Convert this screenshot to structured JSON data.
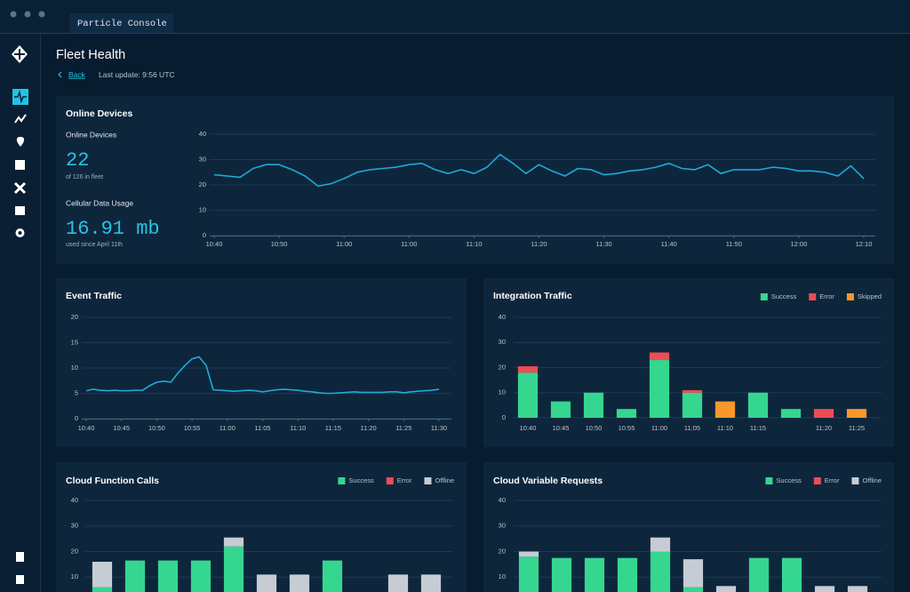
{
  "app": {
    "tab": "Particle Console"
  },
  "page": {
    "title": "Fleet Health",
    "back": "Back",
    "last_update": "Last update: 9:56 UTC"
  },
  "stats": [
    {
      "label": "Online Devices",
      "value": "22",
      "note": "of 126 in fleet"
    },
    {
      "label": "Cellular Data Usage",
      "value": "16.91 mb",
      "note": "used since April 11th"
    }
  ],
  "chart_data": [
    {
      "type": "line",
      "title": "Online Devices",
      "color": "#1fa9d8",
      "grid": true,
      "ylim": [
        0,
        40
      ],
      "yticks": [
        0,
        10,
        20,
        30,
        40
      ],
      "categories": [
        "10:40",
        null,
        null,
        null,
        null,
        "10:50",
        null,
        null,
        null,
        null,
        "11:00",
        null,
        null,
        null,
        null,
        "11:00",
        null,
        null,
        null,
        null,
        "11:10",
        null,
        null,
        null,
        null,
        "11:20",
        null,
        null,
        null,
        null,
        "11:30",
        null,
        null,
        null,
        null,
        "11:40",
        null,
        null,
        null,
        null,
        "11:50",
        null,
        null,
        null,
        null,
        "12:00",
        null,
        null,
        null,
        null,
        "12:10"
      ],
      "values": [
        24,
        23.5,
        23,
        26.5,
        28,
        28,
        26,
        23.5,
        19.5,
        20.5,
        22.5,
        25,
        26,
        26.5,
        27,
        28,
        28.5,
        26,
        24.5,
        26,
        24.5,
        27,
        32,
        28.5,
        24.5,
        28,
        25.5,
        23.5,
        26.5,
        26,
        24,
        24.5,
        25.5,
        26,
        27,
        28.5,
        26.5,
        26,
        28,
        24.5,
        26,
        26,
        26,
        27,
        26.5,
        25.5,
        25.5,
        25,
        23.5,
        27.5,
        22.5
      ]
    },
    {
      "type": "line",
      "title": "Event Traffic",
      "color": "#1fa9d8",
      "grid": true,
      "ylim": [
        0,
        20
      ],
      "yticks": [
        0,
        5,
        10,
        15,
        20
      ],
      "categories": [
        "10:40",
        null,
        null,
        null,
        null,
        "10:45",
        null,
        null,
        null,
        null,
        "10:50",
        null,
        null,
        null,
        null,
        "10:55",
        null,
        null,
        null,
        null,
        "11:00",
        null,
        null,
        null,
        null,
        "11:05",
        null,
        null,
        null,
        null,
        "11:10",
        null,
        null,
        null,
        null,
        "11:15",
        null,
        null,
        null,
        null,
        "11:20",
        null,
        null,
        null,
        null,
        "11:25",
        null,
        null,
        null,
        null,
        "11:30"
      ],
      "values": [
        5.5,
        5.8,
        5.6,
        5.5,
        5.6,
        5.5,
        5.5,
        5.6,
        5.6,
        6.5,
        7.2,
        7.4,
        7.2,
        9,
        10.5,
        11.8,
        12.2,
        10.5,
        5.7,
        5.6,
        5.5,
        5.4,
        5.5,
        5.6,
        5.5,
        5.3,
        5.5,
        5.7,
        5.8,
        5.7,
        5.6,
        5.4,
        5.3,
        5.1,
        5.0,
        5.0,
        5.1,
        5.2,
        5.3,
        5.2,
        5.2,
        5.2,
        5.2,
        5.3,
        5.3,
        5.1,
        5.3,
        5.4,
        5.5,
        5.6,
        5.8
      ]
    },
    {
      "type": "bar",
      "stacked": true,
      "title": "Integration Traffic",
      "grid": true,
      "legend": "top-right",
      "ylim": [
        0,
        40
      ],
      "yticks": [
        0,
        10,
        20,
        30,
        40
      ],
      "categories": [
        "10:40",
        "10:45",
        "10:50",
        "10:55",
        "11:00",
        "11:05",
        "11:10",
        "11:15",
        null,
        "11:20",
        "11:25"
      ],
      "series": [
        {
          "name": "Success",
          "color": "#35d690",
          "values": [
            18,
            6.5,
            10,
            3.5,
            23,
            10,
            null,
            10,
            3.5,
            null,
            null
          ]
        },
        {
          "name": "Error",
          "color": "#ef4b55",
          "values": [
            2.5,
            null,
            null,
            null,
            3,
            1,
            null,
            null,
            null,
            3.5,
            null
          ]
        },
        {
          "name": "Skipped",
          "color": "#f7982c",
          "values": [
            null,
            null,
            null,
            null,
            null,
            null,
            6.5,
            null,
            null,
            null,
            3.5
          ]
        }
      ]
    },
    {
      "type": "bar",
      "stacked": true,
      "title": "Cloud Function Calls",
      "grid": true,
      "legend": "top-right",
      "ylim": [
        0,
        40
      ],
      "yticks": [
        10,
        20,
        30,
        40
      ],
      "series": [
        {
          "name": "Success",
          "color": "#35d690",
          "values": [
            6,
            16.5,
            16.5,
            16.5,
            22,
            null,
            null,
            16.5,
            null,
            null,
            null
          ]
        },
        {
          "name": "Error",
          "color": "#ef4b55",
          "values": [
            null,
            null,
            null,
            null,
            null,
            null,
            null,
            null,
            null,
            null,
            null
          ]
        },
        {
          "name": "Offline",
          "color": "#c6ccd4",
          "values": [
            10,
            null,
            null,
            null,
            3.5,
            11,
            11,
            null,
            null,
            11,
            11
          ]
        }
      ]
    },
    {
      "type": "bar",
      "stacked": true,
      "title": "Cloud Variable Requests",
      "grid": true,
      "legend": "top-right",
      "ylim": [
        0,
        40
      ],
      "yticks": [
        10,
        20,
        30,
        40
      ],
      "series": [
        {
          "name": "Success",
          "color": "#35d690",
          "values": [
            18,
            17.5,
            17.5,
            17.5,
            20,
            6,
            null,
            17.5,
            17.5,
            null,
            null
          ]
        },
        {
          "name": "Error",
          "color": "#ef4b55",
          "values": [
            null,
            null,
            null,
            null,
            null,
            null,
            null,
            null,
            null,
            null,
            null
          ]
        },
        {
          "name": "Offline",
          "color": "#c6ccd4",
          "values": [
            2,
            null,
            null,
            null,
            5.5,
            11,
            6.5,
            null,
            null,
            6.5,
            6.5
          ]
        }
      ]
    }
  ]
}
